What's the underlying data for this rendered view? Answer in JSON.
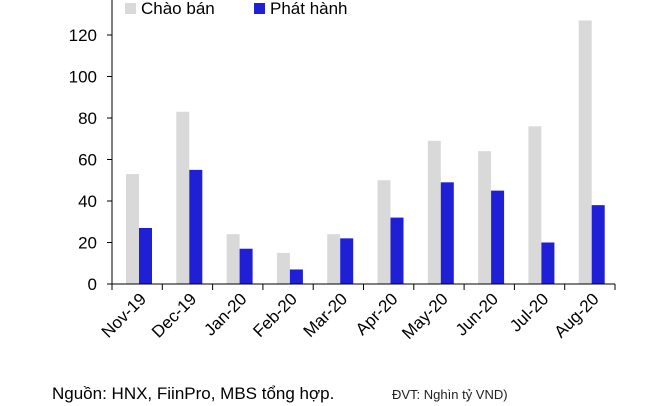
{
  "chart_data": {
    "type": "bar",
    "categories": [
      "Nov-19",
      "Dec-19",
      "Jan-20",
      "Feb-20",
      "Mar-20",
      "Apr-20",
      "May-20",
      "Jun-20",
      "Jul-20",
      "Aug-20"
    ],
    "series": [
      {
        "name": "Chào bán",
        "color": "#d9d9d9",
        "values": [
          53,
          83,
          24,
          15,
          24,
          50,
          69,
          64,
          76,
          127
        ]
      },
      {
        "name": "Phát hành",
        "color": "#1f1fd6",
        "values": [
          27,
          55,
          17,
          7,
          22,
          32,
          49,
          45,
          20,
          38
        ]
      }
    ],
    "yticks": [
      0,
      20,
      40,
      60,
      80,
      100,
      120
    ],
    "ylim": [
      0,
      130
    ],
    "legend_position": "top",
    "grid": false
  },
  "footer": {
    "source": "Nguồn: HNX, FiinPro, MBS tổng hợp.",
    "unit": "ĐVT: Nghìn tỷ VND)"
  }
}
